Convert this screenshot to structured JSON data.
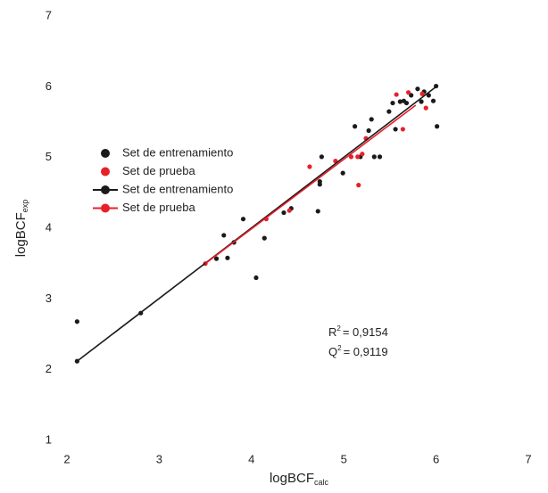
{
  "chart_data": {
    "type": "scatter",
    "x_label": {
      "text": "logBCF",
      "sub": "calc"
    },
    "y_label": {
      "text": "logBCF",
      "sub": "exp"
    },
    "xlim": [
      2,
      7
    ],
    "ylim": [
      1,
      7
    ],
    "xticks": [
      2,
      3,
      4,
      5,
      6,
      7
    ],
    "yticks": [
      1,
      2,
      3,
      4,
      5,
      6,
      7
    ],
    "grid": false,
    "legend": "upper left",
    "annotations": [
      {
        "text": "R",
        "sup": "2",
        "rest": "= 0,9154"
      },
      {
        "text": "Q",
        "sup": "2",
        "rest": "= 0,9119"
      }
    ],
    "series": [
      {
        "name": "Set de entrenamiento",
        "color": "#1a1a1a",
        "mode": "markers",
        "x": [
          2.11,
          2.11,
          2.8,
          3.62,
          3.7,
          3.74,
          3.81,
          3.91,
          4.05,
          4.14,
          4.35,
          4.43,
          4.72,
          4.74,
          4.74,
          4.76,
          4.99,
          5.12,
          5.18,
          5.27,
          5.3,
          5.33,
          5.39,
          5.49,
          5.53,
          5.56,
          5.61,
          5.65,
          5.68,
          5.73,
          5.8,
          5.84,
          5.87,
          5.92,
          5.97,
          6.01,
          6.0
        ],
        "values": [
          2.68,
          2.12,
          2.8,
          3.57,
          3.9,
          3.58,
          3.8,
          4.13,
          3.3,
          3.86,
          4.22,
          4.28,
          4.24,
          4.62,
          4.66,
          5.01,
          4.78,
          5.44,
          5.01,
          5.38,
          5.54,
          5.01,
          5.01,
          5.65,
          5.77,
          5.4,
          5.79,
          5.8,
          5.77,
          5.88,
          5.97,
          5.79,
          5.93,
          5.88,
          5.8,
          5.44,
          6.01
        ]
      },
      {
        "name": "Set de prueba",
        "color": "#e8202a",
        "mode": "markers",
        "x": [
          3.5,
          4.16,
          4.41,
          4.63,
          4.91,
          5.08,
          5.15,
          5.16,
          5.2,
          5.24,
          5.57,
          5.64,
          5.7,
          5.85,
          5.89
        ],
        "values": [
          3.5,
          4.13,
          4.25,
          4.87,
          4.95,
          5.01,
          5.01,
          4.61,
          5.05,
          5.27,
          5.89,
          5.4,
          5.92,
          5.9,
          5.7
        ]
      },
      {
        "name": "Set de entrenamiento",
        "color": "#1a1a1a",
        "mode": "line",
        "x": [
          2.11,
          6.01
        ],
        "values": [
          2.12,
          6.01
        ]
      },
      {
        "name": "Set de prueba",
        "color": "#e8202a",
        "mode": "line",
        "x": [
          3.5,
          5.78
        ],
        "values": [
          3.5,
          5.74
        ]
      }
    ]
  }
}
